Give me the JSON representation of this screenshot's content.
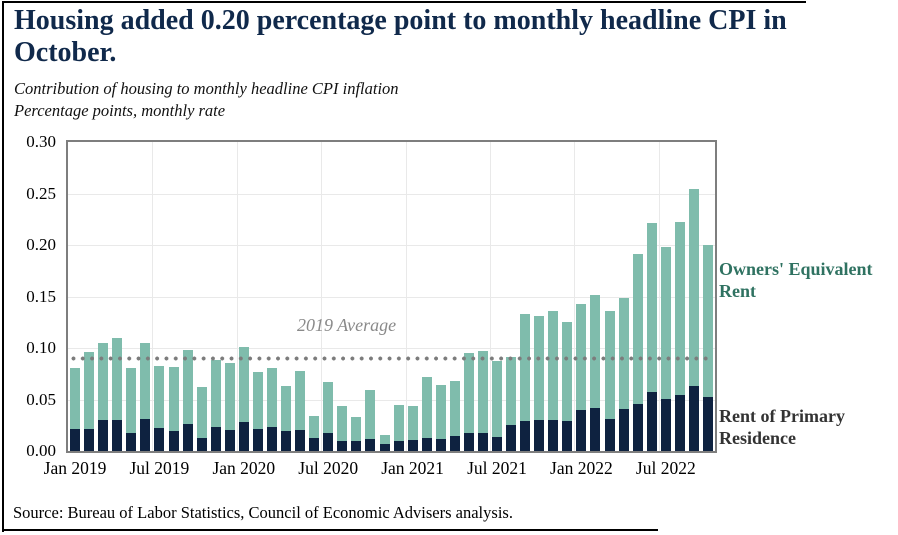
{
  "header": {
    "title": "Housing added 0.20 percentage point to monthly headline CPI in October.",
    "subtitle1": "Contribution of housing to monthly headline CPI inflation",
    "subtitle2": "Percentage points, monthly rate"
  },
  "legend": {
    "oer": "Owners' Equivalent Rent",
    "rent": "Rent of Primary Residence"
  },
  "source": "Source: Bureau of Labor Statistics, Council of Economic Advisers analysis.",
  "colors": {
    "title_navy": "#10294b",
    "bar_navy": "#0e2240",
    "bar_teal": "#7fbcac",
    "oer_label_green": "#2f7261",
    "rent_label_dark": "#333333",
    "reference_gray": "#7c7c7c",
    "grid_gray": "#e9e9e9",
    "axis_gray": "#7e7e7e"
  },
  "chart_data": {
    "type": "bar",
    "stacked": true,
    "title": "Contribution of housing to monthly headline CPI inflation",
    "ylabel": "Percentage points, monthly rate",
    "xlabel": "",
    "ylim": [
      0,
      0.3
    ],
    "grid": true,
    "categories": [
      "Jan 2019",
      "Feb 2019",
      "Mar 2019",
      "Apr 2019",
      "May 2019",
      "Jun 2019",
      "Jul 2019",
      "Aug 2019",
      "Sep 2019",
      "Oct 2019",
      "Nov 2019",
      "Dec 2019",
      "Jan 2020",
      "Feb 2020",
      "Mar 2020",
      "Apr 2020",
      "May 2020",
      "Jun 2020",
      "Jul 2020",
      "Aug 2020",
      "Sep 2020",
      "Oct 2020",
      "Nov 2020",
      "Dec 2020",
      "Jan 2021",
      "Feb 2021",
      "Mar 2021",
      "Apr 2021",
      "May 2021",
      "Jun 2021",
      "Jul 2021",
      "Aug 2021",
      "Sep 2021",
      "Oct 2021",
      "Nov 2021",
      "Dec 2021",
      "Jan 2022",
      "Feb 2022",
      "Mar 2022",
      "Apr 2022",
      "May 2022",
      "Jun 2022",
      "Jul 2022",
      "Aug 2022",
      "Sep 2022",
      "Oct 2022"
    ],
    "series": [
      {
        "name": "Rent of Primary Residence",
        "color": "#0e2240",
        "values": [
          0.021,
          0.021,
          0.03,
          0.03,
          0.018,
          0.031,
          0.022,
          0.019,
          0.026,
          0.013,
          0.023,
          0.02,
          0.028,
          0.021,
          0.023,
          0.019,
          0.02,
          0.013,
          0.018,
          0.01,
          0.01,
          0.012,
          0.007,
          0.01,
          0.011,
          0.013,
          0.012,
          0.015,
          0.018,
          0.018,
          0.014,
          0.025,
          0.029,
          0.03,
          0.03,
          0.029,
          0.04,
          0.042,
          0.031,
          0.041,
          0.046,
          0.057,
          0.051,
          0.054,
          0.063,
          0.052
        ]
      },
      {
        "name": "Owners' Equivalent Rent",
        "color": "#7fbcac",
        "values": [
          0.06,
          0.075,
          0.075,
          0.08,
          0.063,
          0.074,
          0.061,
          0.063,
          0.072,
          0.049,
          0.065,
          0.065,
          0.073,
          0.056,
          0.058,
          0.044,
          0.058,
          0.021,
          0.049,
          0.034,
          0.023,
          0.047,
          0.009,
          0.035,
          0.033,
          0.059,
          0.052,
          0.053,
          0.077,
          0.079,
          0.073,
          0.066,
          0.104,
          0.101,
          0.106,
          0.096,
          0.103,
          0.109,
          0.105,
          0.108,
          0.145,
          0.164,
          0.147,
          0.168,
          0.191,
          0.148
        ]
      }
    ],
    "yticks": [
      "0.00",
      "0.05",
      "0.10",
      "0.15",
      "0.20",
      "0.25",
      "0.30"
    ],
    "xtick_every": 6,
    "xtick_labels": [
      "Jan 2019",
      "Jul 2019",
      "Jan 2020",
      "Jul 2020",
      "Jan 2021",
      "Jul 2021",
      "Jan 2022",
      "Jul 2022"
    ],
    "reference_line": {
      "label": "2019 Average",
      "value": 0.089,
      "style": "dotted",
      "color": "#7c7c7c"
    },
    "legend_position": "right"
  }
}
